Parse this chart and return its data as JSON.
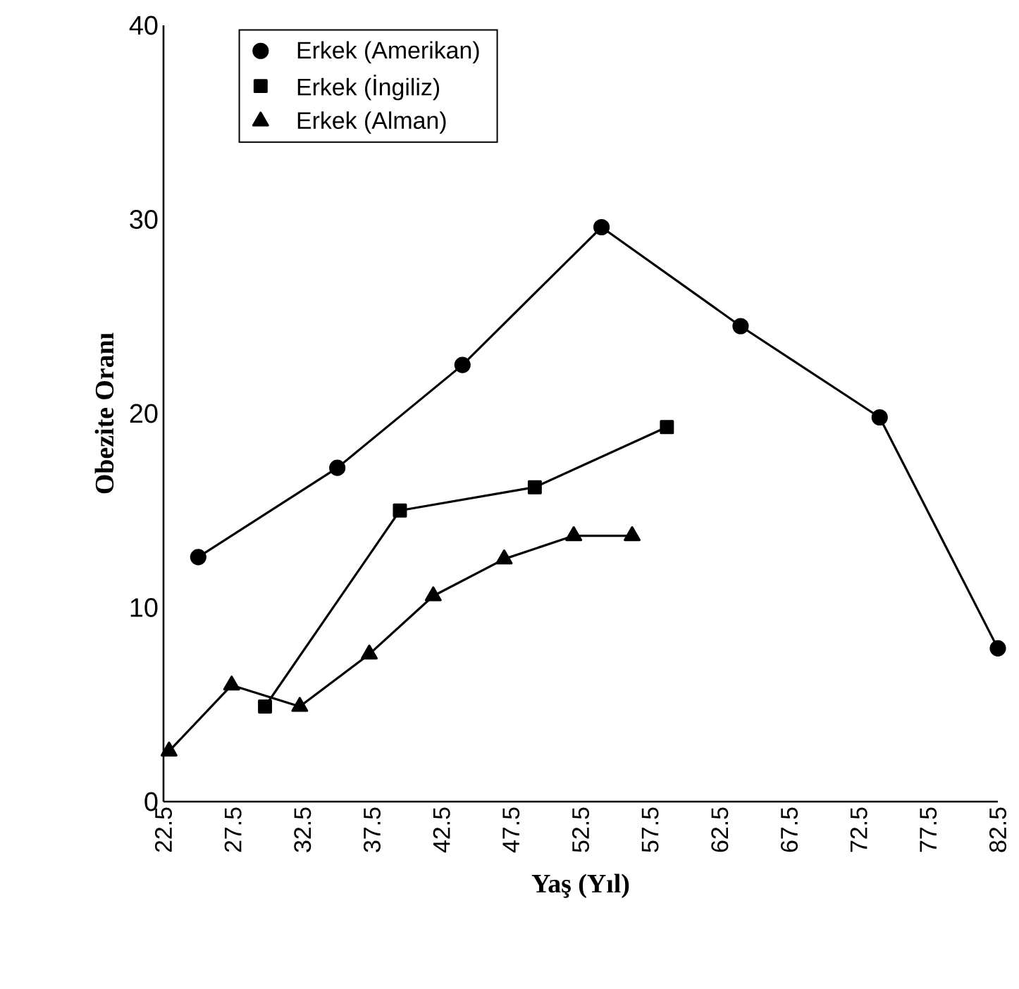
{
  "chart_data": {
    "type": "line",
    "xlabel": "Yaş (Yıl)",
    "ylabel": "Obezite Oranı",
    "xlim": [
      22.5,
      82.5
    ],
    "xticks": [
      22.5,
      27.5,
      32.5,
      37.5,
      42.5,
      47.5,
      52.5,
      57.5,
      62.5,
      67.5,
      72.5,
      77.5,
      82.5
    ],
    "ylim": [
      0,
      40
    ],
    "yticks": [
      0,
      10,
      20,
      30,
      40
    ],
    "legend": "top left",
    "grid": false,
    "line_style": "solid",
    "series": [
      {
        "name": "Erkek (Amerikan)",
        "color": "#000000",
        "marker": "circle",
        "x": [
          25,
          35,
          44,
          54,
          64,
          74,
          82.5
        ],
        "values": [
          12.6,
          17.2,
          22.5,
          29.6,
          24.5,
          19.8,
          7.9
        ]
      },
      {
        "name": "Erkek (İngiliz)",
        "color": "#000000",
        "marker": "square",
        "x": [
          29.8,
          39.5,
          49.2,
          58.7
        ],
        "values": [
          4.9,
          15.0,
          16.2,
          19.3
        ]
      },
      {
        "name": "Erkek (Alman)",
        "color": "#000000",
        "marker": "triangle",
        "x": [
          22.9,
          27.4,
          32.3,
          37.3,
          41.9,
          47.0,
          52.0,
          56.2
        ],
        "values": [
          2.6,
          6.0,
          4.9,
          7.6,
          10.6,
          12.5,
          13.7,
          13.7
        ]
      }
    ]
  }
}
